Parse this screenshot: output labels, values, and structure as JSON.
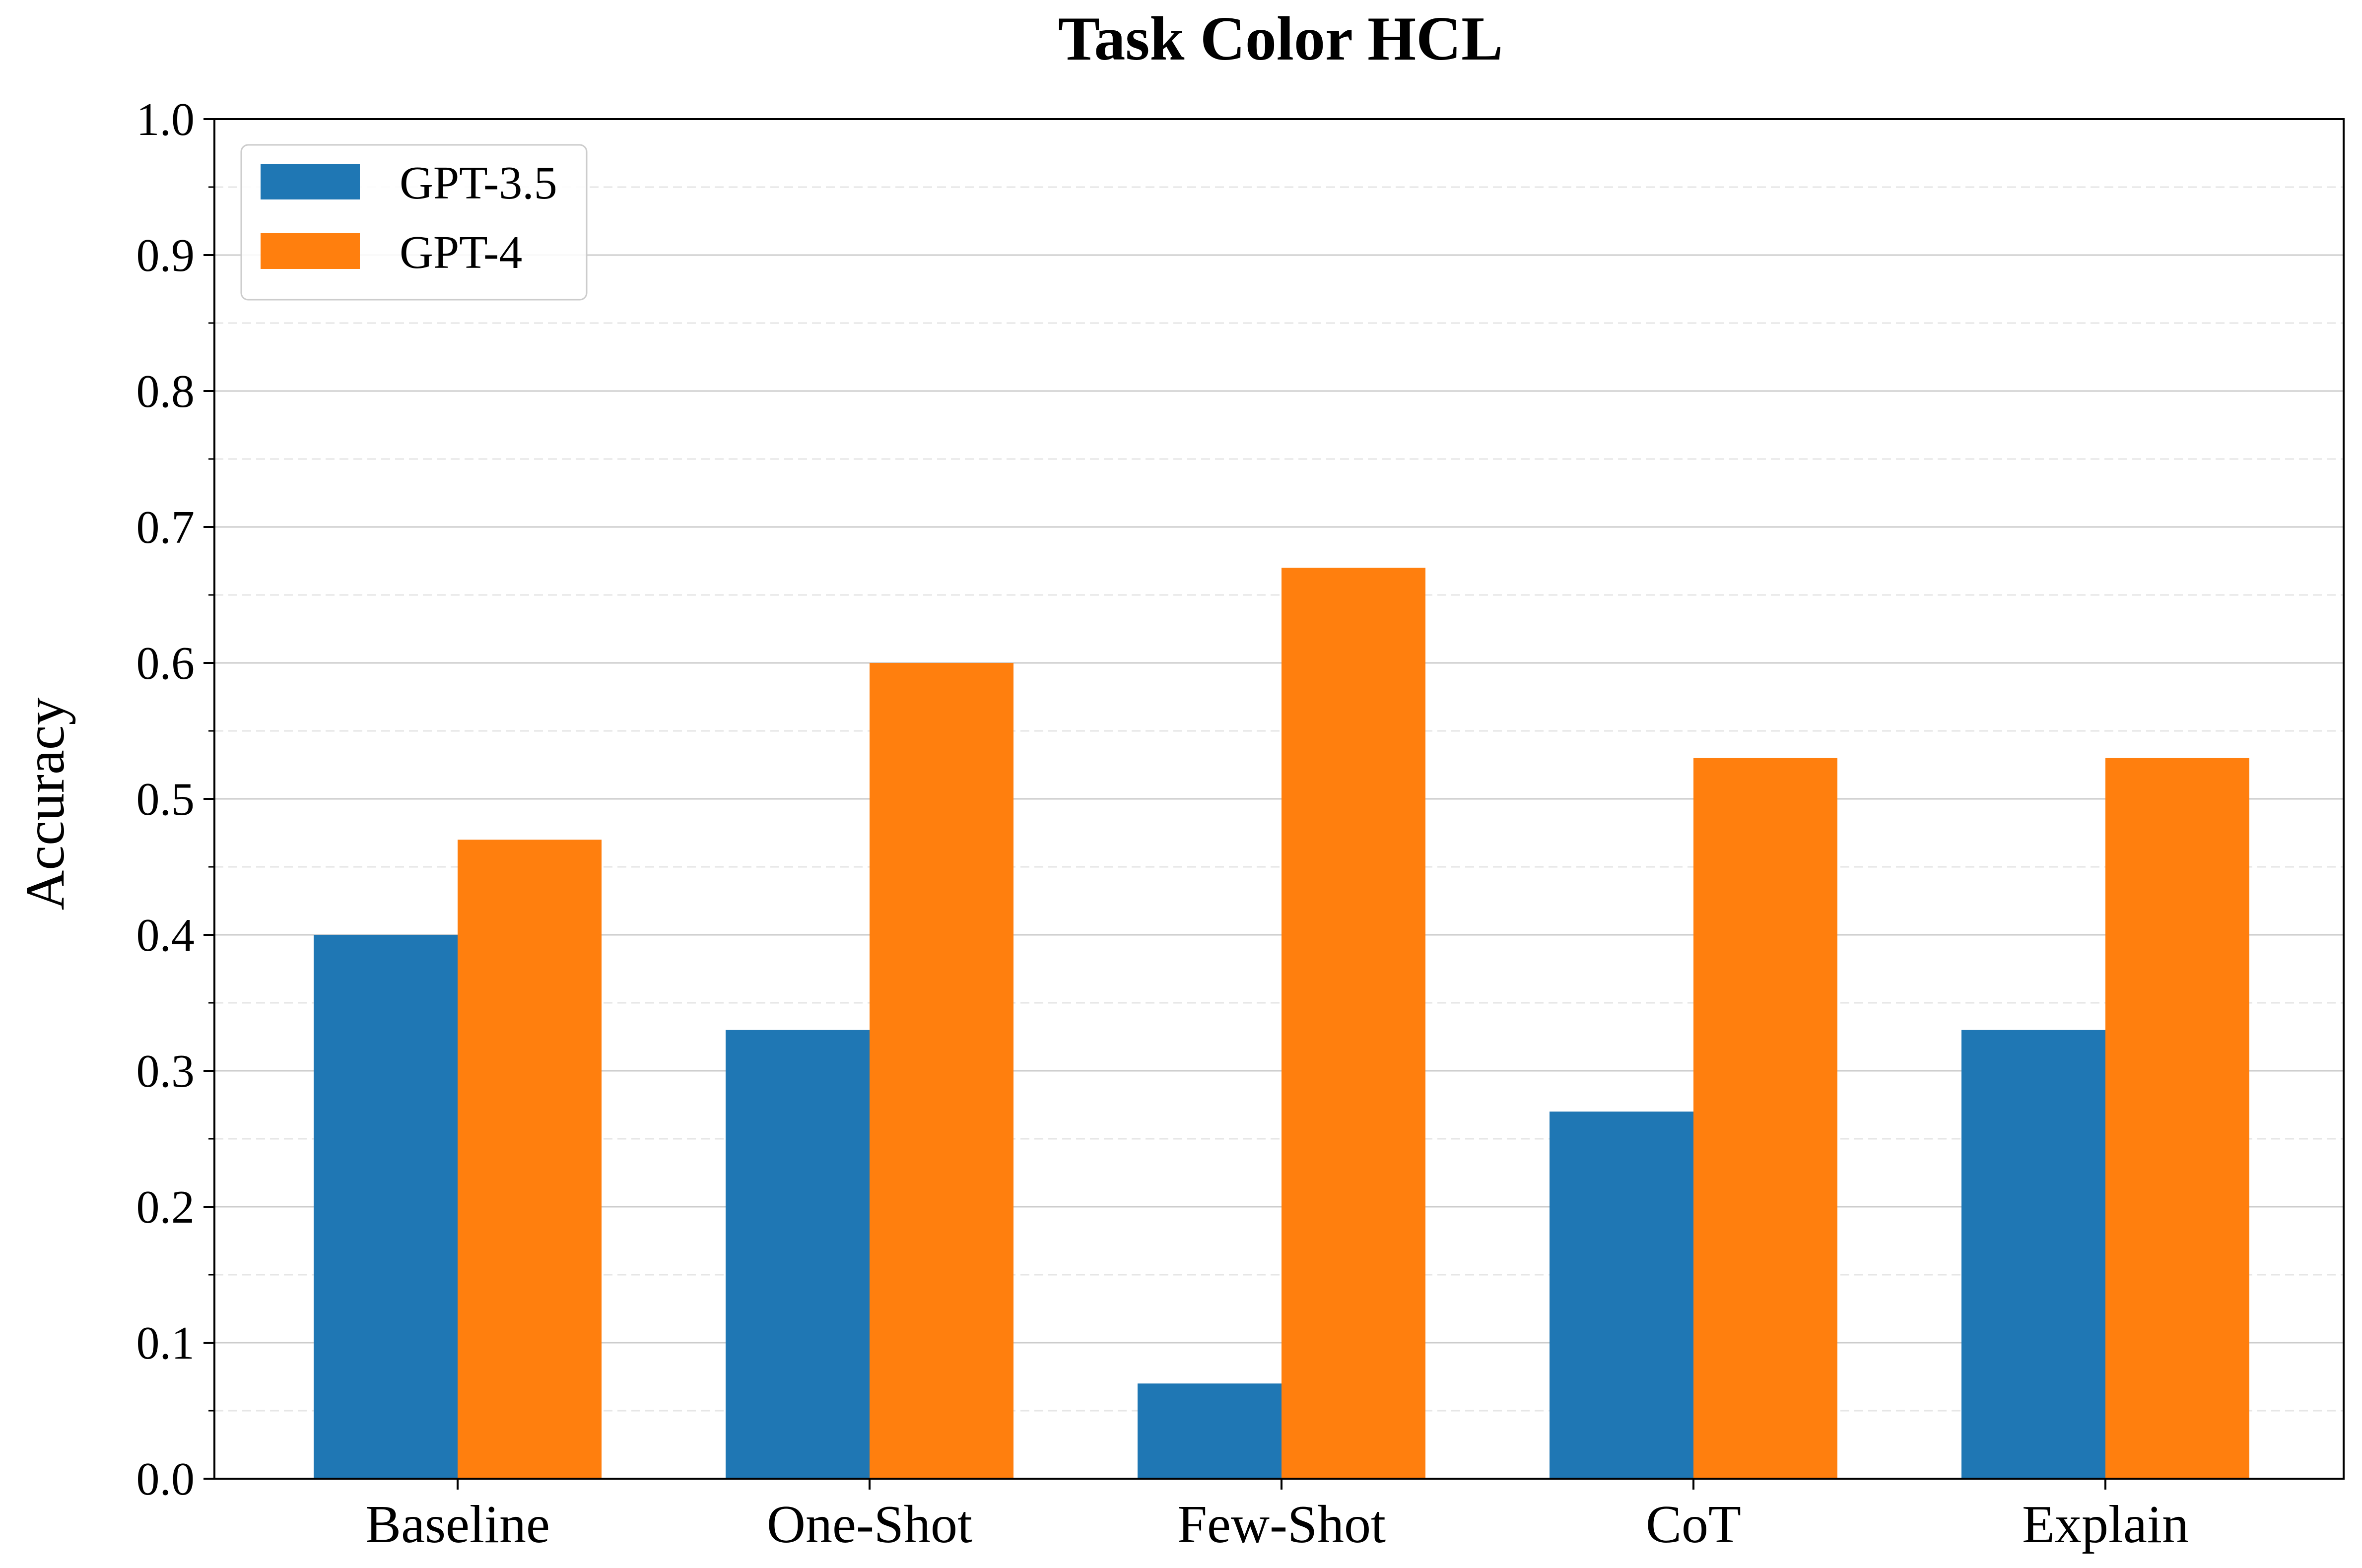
{
  "chart_data": {
    "type": "bar",
    "title": "Task Color HCL",
    "xlabel": "",
    "ylabel": "Accuracy",
    "categories": [
      "Baseline",
      "One-Shot",
      "Few-Shot",
      "CoT",
      "Explain"
    ],
    "series": [
      {
        "name": "GPT-3.5",
        "color": "#1f77b4",
        "values": [
          0.4,
          0.33,
          0.07,
          0.27,
          0.33
        ]
      },
      {
        "name": "GPT-4",
        "color": "#ff7f0e",
        "values": [
          0.47,
          0.6,
          0.67,
          0.53,
          0.53
        ]
      }
    ],
    "ylim": [
      0,
      1.0
    ],
    "yticks": [
      "0.0",
      "0.1",
      "0.2",
      "0.3",
      "0.4",
      "0.5",
      "0.6",
      "0.7",
      "0.8",
      "0.9",
      "1.0"
    ],
    "grid": {
      "major": true,
      "minor_dashed": true
    },
    "legend": "top-left"
  }
}
